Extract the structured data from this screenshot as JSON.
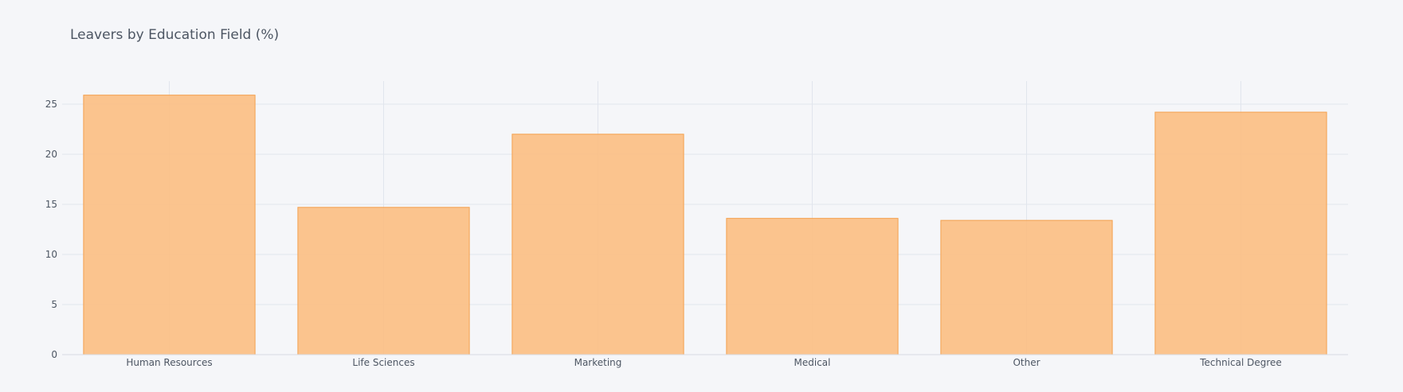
{
  "chart_data": {
    "type": "bar",
    "title": "Leavers by Education Field (%)",
    "xlabel": "",
    "ylabel": "",
    "categories": [
      "Human Resources",
      "Life Sciences",
      "Marketing",
      "Medical",
      "Other",
      "Technical Degree"
    ],
    "values": [
      25.9,
      14.7,
      22.0,
      13.6,
      13.4,
      24.2
    ],
    "yticks": [
      0,
      5,
      10,
      15,
      20,
      25
    ],
    "ylim": [
      0,
      27.3
    ],
    "grid": true,
    "legend": "none",
    "colors": {
      "bar_fill": "#fbbf84",
      "bar_stroke": "#f4a04e",
      "grid": "#e1e5ed",
      "axis": "#d7dbe3",
      "background": "#f5f6f9"
    }
  }
}
